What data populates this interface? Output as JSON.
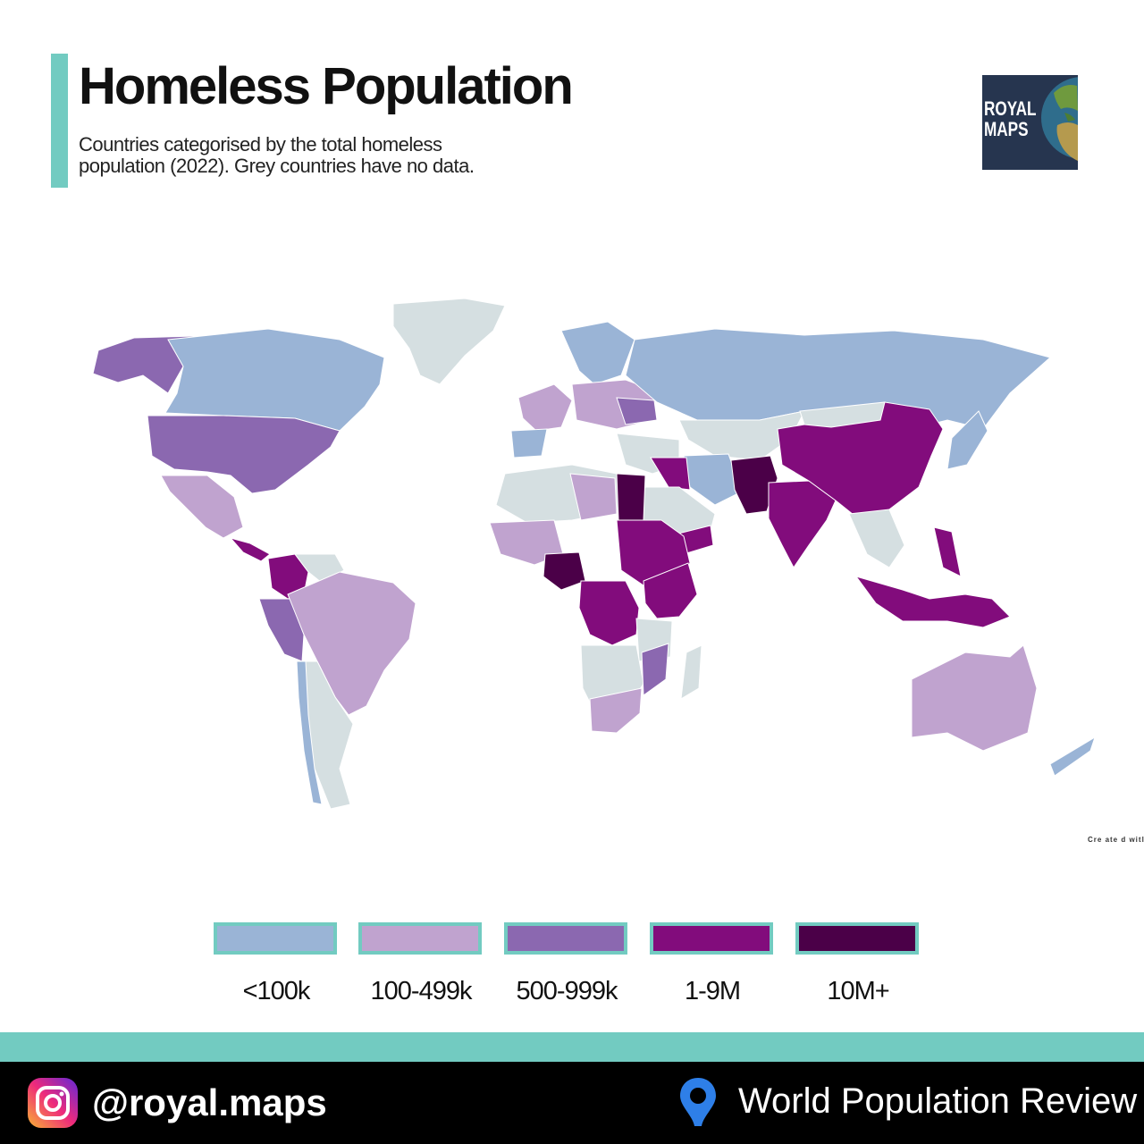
{
  "title": "Homeless Population",
  "subtitle": "Countries categorised by the total homeless population (2022). Grey countries have no data.",
  "logo": {
    "line1": "ROYAL",
    "line2": "MAPS",
    "icon": "globe-icon"
  },
  "credit": "Cre ate d witl",
  "colors": {
    "accent": "#72cbc1",
    "no_data": "#d5dfe1",
    "lt100k": "#9ab4d6",
    "c100_499k": "#c0a3cf",
    "c500_999k": "#8b68b0",
    "c1_9M": "#820c7c",
    "c10Mplus": "#4b0048"
  },
  "legend": [
    {
      "label": "<100k",
      "color": "#9ab4d6"
    },
    {
      "label": "100-499k",
      "color": "#c0a3cf"
    },
    {
      "label": "500-999k",
      "color": "#8b68b0"
    },
    {
      "label": "1-9M",
      "color": "#820c7c"
    },
    {
      "label": "10M+",
      "color": "#4b0048"
    }
  ],
  "footer": {
    "handle": "@royal.maps",
    "handle_icon": "instagram-icon",
    "source": "World Population Review",
    "source_icon": "location-pin-icon"
  }
}
